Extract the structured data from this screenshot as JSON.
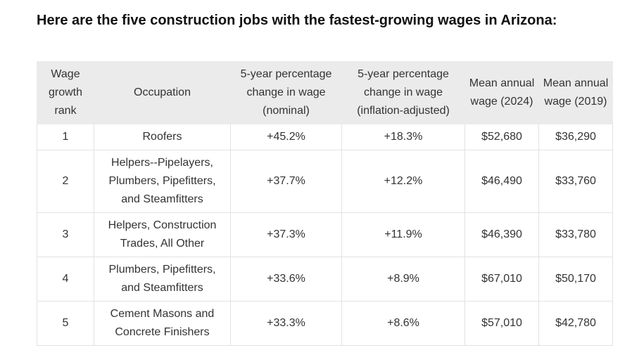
{
  "header": {
    "title": "Here are the five construction jobs with the fastest-growing wages in Arizona:"
  },
  "table": {
    "columns": [
      "Wage growth rank",
      "Occupation",
      "5-year percentage change in wage (nominal)",
      "5-year percentage change in wage (inflation-adjusted)",
      "Mean annual wage (2024)",
      "Mean annual wage (2019)"
    ],
    "rows": [
      [
        "1",
        "Roofers",
        "+45.2%",
        "+18.3%",
        "$52,680",
        "$36,290"
      ],
      [
        "2",
        "Helpers--Pipelayers, Plumbers, Pipefitters, and Steamfitters",
        "+37.7%",
        "+12.2%",
        "$46,490",
        "$33,760"
      ],
      [
        "3",
        "Helpers, Construction Trades, All Other",
        "+37.3%",
        "+11.9%",
        "$46,390",
        "$33,780"
      ],
      [
        "4",
        "Plumbers, Pipefitters, and Steamfitters",
        "+33.6%",
        "+8.9%",
        "$67,010",
        "$50,170"
      ],
      [
        "5",
        "Cement Masons and Concrete Finishers",
        "+33.3%",
        "+8.6%",
        "$57,010",
        "$42,780"
      ]
    ]
  }
}
